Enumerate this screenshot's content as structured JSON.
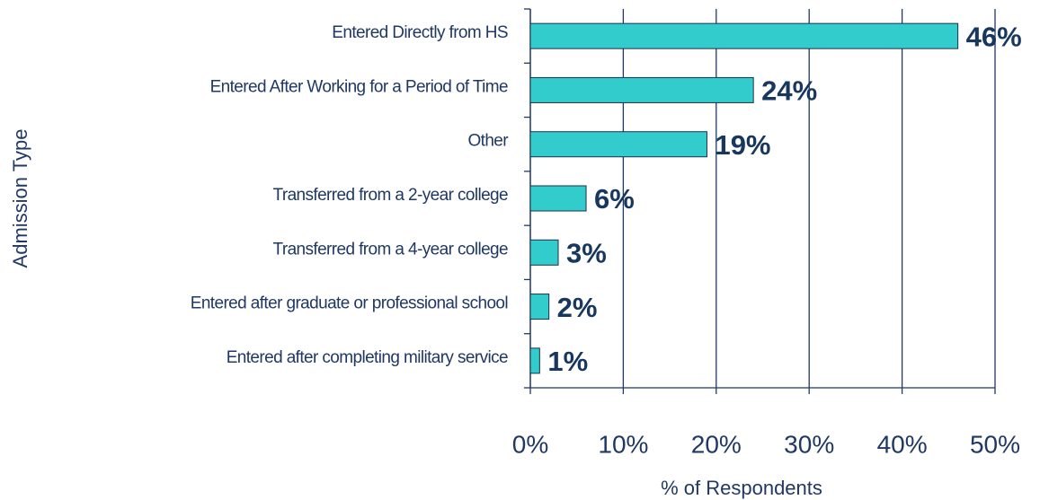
{
  "chart_data": {
    "type": "bar",
    "orientation": "horizontal",
    "ylabel": "Admission Type",
    "xlabel": "% of Respondents",
    "categories": [
      "Entered Directly from HS",
      "Entered After Working for a Period of Time",
      "Other",
      "Transferred from a 2-year college",
      "Transferred from a 4-year college",
      "Entered after graduate or professional school",
      "Entered after completing military service"
    ],
    "values": [
      46,
      24,
      19,
      6,
      3,
      2,
      1
    ],
    "value_labels": [
      "46%",
      "24%",
      "19%",
      "6%",
      "3%",
      "2%",
      "1%"
    ],
    "color": "#33cccc",
    "xlim": [
      0,
      50
    ],
    "xticks": [
      {
        "value": 0,
        "label": "0%"
      },
      {
        "value": 10,
        "label": "10%"
      },
      {
        "value": 20,
        "label": "20%"
      },
      {
        "value": 30,
        "label": "30%"
      },
      {
        "value": 40,
        "label": "40%"
      },
      {
        "value": 50,
        "label": "50%"
      }
    ],
    "grid": true
  }
}
